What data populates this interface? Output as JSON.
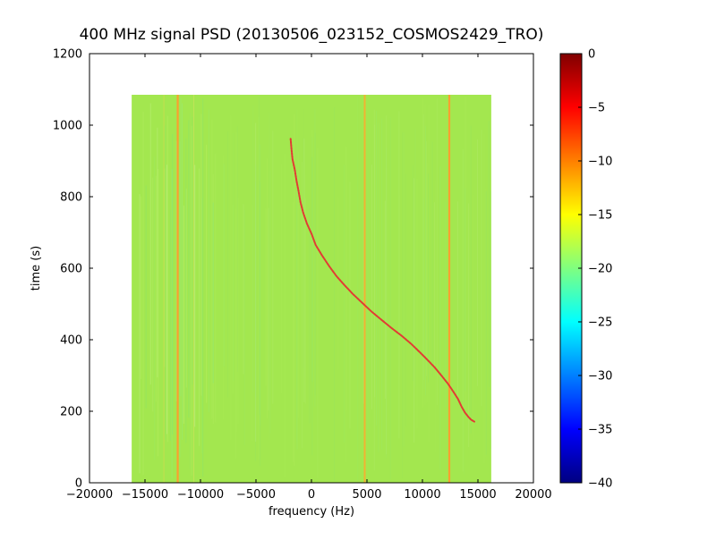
{
  "chart_data": {
    "type": "heatmap",
    "title": "400 MHz signal PSD (20130506_023152_COSMOS2429_TRO)",
    "xlabel": "frequency (Hz)",
    "ylabel": "time (s)",
    "xlim": [
      -20000,
      20000
    ],
    "ylim": [
      0,
      1200
    ],
    "xticks": [
      -20000,
      -15000,
      -10000,
      -5000,
      0,
      5000,
      10000,
      15000,
      20000
    ],
    "yticks": [
      0,
      200,
      400,
      600,
      800,
      1000,
      1200
    ],
    "grid": false,
    "legend": "none",
    "data_extent": {
      "freq_hz": [
        -16200,
        16200
      ],
      "time_s": [
        0,
        1085
      ]
    },
    "background": {
      "level_db": -17.5,
      "color": "#a3e74f"
    },
    "noise_speckle_colors": [
      "#ffffff",
      "#7df0c0",
      "#e2ff8a",
      "#58e0a8",
      "#c8f57a"
    ],
    "carrier_lines": [
      {
        "freq": -13300,
        "color": "#ffd24a",
        "width": 1,
        "opacity": 0.35
      },
      {
        "freq": -12050,
        "color": "#ff9d2e",
        "width": 2.2,
        "opacity": 0.95
      },
      {
        "freq": -10600,
        "color": "#ffe06a",
        "width": 1,
        "opacity": 0.3
      },
      {
        "freq": 4800,
        "color": "#ffab2e",
        "width": 2,
        "opacity": 0.85
      },
      {
        "freq": 12420,
        "color": "#ff9d2e",
        "width": 2.2,
        "opacity": 0.95
      }
    ],
    "doppler_track": {
      "color": "#e23b33",
      "points_time_freq": [
        [
          962,
          -1850
        ],
        [
          935,
          -1760
        ],
        [
          905,
          -1660
        ],
        [
          875,
          -1540
        ],
        [
          845,
          -1390
        ],
        [
          815,
          -1210
        ],
        [
          785,
          -990
        ],
        [
          755,
          -720
        ],
        [
          725,
          -400
        ],
        [
          695,
          -20
        ],
        [
          665,
          430
        ],
        [
          635,
          960
        ],
        [
          605,
          1570
        ],
        [
          578,
          2230
        ],
        [
          552,
          2950
        ],
        [
          527,
          3720
        ],
        [
          503,
          4540
        ],
        [
          479,
          5420
        ],
        [
          456,
          6320
        ],
        [
          433,
          7230
        ],
        [
          410,
          8120
        ],
        [
          388,
          8960
        ],
        [
          366,
          9740
        ],
        [
          344,
          10460
        ],
        [
          322,
          11120
        ],
        [
          300,
          11720
        ],
        [
          278,
          12260
        ],
        [
          256,
          12740
        ],
        [
          234,
          13180
        ],
        [
          212,
          13580
        ],
        [
          196,
          13880
        ],
        [
          184,
          14160
        ],
        [
          176,
          14430
        ],
        [
          171,
          14650
        ]
      ]
    },
    "colorbar": {
      "vmin": -40,
      "vmax": 0,
      "colormap": "jet",
      "label_ticks": [
        0,
        -5,
        -10,
        -15,
        -20,
        -25,
        -30,
        -35,
        -40
      ],
      "gradient_stops": [
        {
          "offset": 0,
          "color": "#800000"
        },
        {
          "offset": 0.125,
          "color": "#ff0000"
        },
        {
          "offset": 0.375,
          "color": "#ffff00"
        },
        {
          "offset": 0.625,
          "color": "#00ffff"
        },
        {
          "offset": 0.875,
          "color": "#0000ff"
        },
        {
          "offset": 1,
          "color": "#000080"
        }
      ]
    }
  }
}
